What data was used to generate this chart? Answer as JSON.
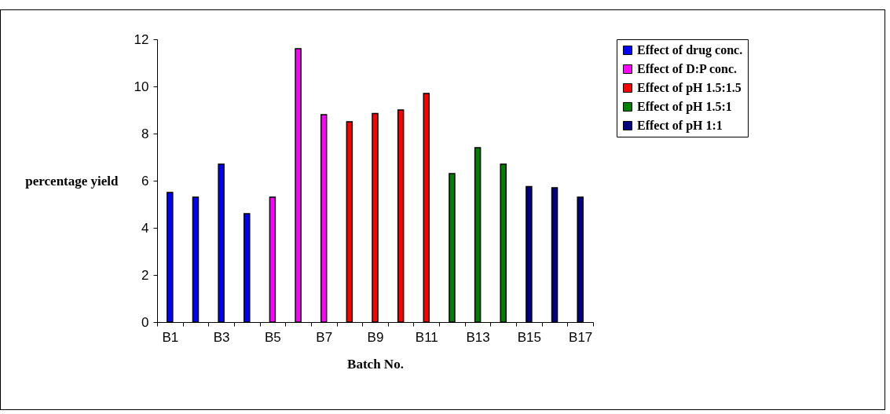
{
  "chart_data": {
    "type": "bar",
    "xlabel": "Batch No.",
    "ylabel": "percentage yield",
    "categories": [
      "B1",
      null,
      "B3",
      null,
      "B5",
      null,
      "B7",
      null,
      "B9",
      null,
      "B11",
      null,
      "B13",
      null,
      "B15",
      null,
      "B17"
    ],
    "series": [
      {
        "name": "Effect of drug conc.",
        "color": "#0000ff",
        "values": [
          5.5,
          5.3,
          6.7,
          4.6,
          null,
          null,
          null,
          null,
          null,
          null,
          null,
          null,
          null,
          null,
          null,
          null,
          null
        ]
      },
      {
        "name": "Effect of D:P conc.",
        "color": "#ff00ff",
        "values": [
          null,
          null,
          null,
          null,
          5.3,
          11.6,
          8.8,
          null,
          null,
          null,
          null,
          null,
          null,
          null,
          null,
          null,
          null
        ]
      },
      {
        "name": "Effect of pH 1.5:1.5",
        "color": "#ff0000",
        "values": [
          null,
          null,
          null,
          null,
          null,
          null,
          null,
          8.5,
          8.85,
          9.0,
          9.7,
          null,
          null,
          null,
          null,
          null,
          null
        ]
      },
      {
        "name": "Effect of pH 1.5:1",
        "color": "#008000",
        "values": [
          null,
          null,
          null,
          null,
          null,
          null,
          null,
          null,
          null,
          null,
          null,
          6.3,
          7.4,
          6.7,
          null,
          null,
          null
        ]
      },
      {
        "name": "Effect of pH 1:1",
        "color": "#000080",
        "values": [
          null,
          null,
          null,
          null,
          null,
          null,
          null,
          null,
          null,
          null,
          null,
          null,
          null,
          null,
          5.75,
          5.7,
          5.3
        ]
      }
    ],
    "ylim": [
      0,
      12
    ],
    "yticks": [
      0,
      2,
      4,
      6,
      8,
      10,
      12
    ],
    "grid": false,
    "legend": "top right"
  }
}
